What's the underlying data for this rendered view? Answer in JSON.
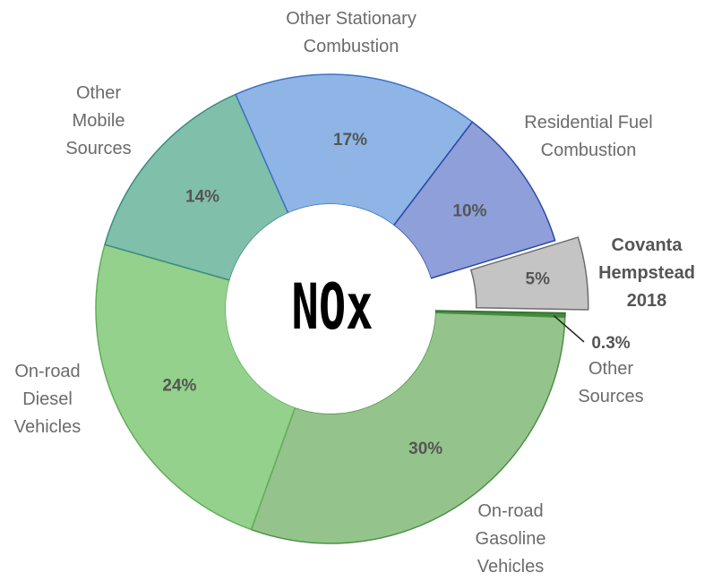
{
  "chart_data": {
    "type": "donut",
    "center_label": "NOx",
    "categories": [
      "Other Sources",
      "On-road Gasoline Vehicles",
      "On-road Diesel Vehicles",
      "Other Mobile Sources",
      "Other Stationary Combustion",
      "Residential Fuel Combustion",
      "Covanta Hempstead 2018"
    ],
    "values": [
      0.3,
      30,
      24,
      14,
      17,
      10,
      5
    ],
    "value_labels": [
      "0.3%",
      "30%",
      "24%",
      "14%",
      "17%",
      "10%",
      "5%"
    ],
    "colors": [
      "#3f8a3a",
      "#94c48c",
      "#93d18c",
      "#80bfa9",
      "#8fb5e6",
      "#8e9fd9",
      "#c4c4c4"
    ],
    "highlight": "Covanta Hempstead 2018"
  }
}
